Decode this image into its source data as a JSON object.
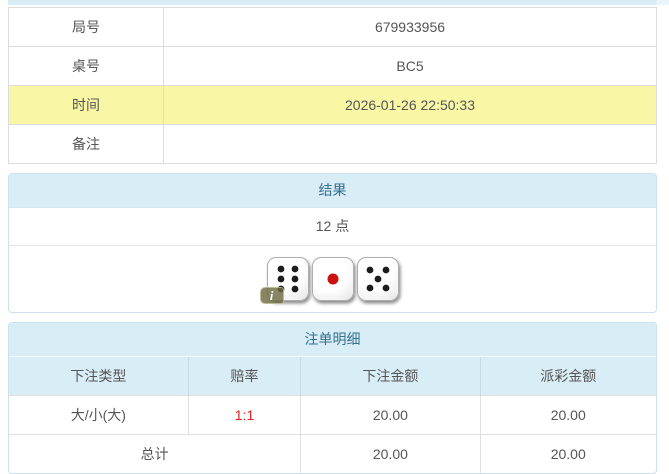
{
  "colors": {
    "accent_bg": "#d9edf7",
    "accent_text": "#31708f",
    "highlight_bg": "#f9f7a6",
    "odds_red": "#dd2222",
    "pip_black": "#1c1c1c",
    "pip_red": "#cc1111"
  },
  "info_table": {
    "rows": [
      {
        "label": "局号",
        "value": "679933956",
        "highlight": false
      },
      {
        "label": "桌号",
        "value": "BC5",
        "highlight": false
      },
      {
        "label": "时间",
        "value": "2026-01-26 22:50:33",
        "highlight": true
      },
      {
        "label": "备注",
        "value": "",
        "highlight": false
      }
    ]
  },
  "result_panel": {
    "title": "结果",
    "points_text": "12 点",
    "dice": [
      {
        "value": 6,
        "pip_color": "#1c1c1c"
      },
      {
        "value": 1,
        "pip_color": "#cc1111"
      },
      {
        "value": 5,
        "pip_color": "#1c1c1c"
      }
    ],
    "info_badge_label": "i"
  },
  "bets_panel": {
    "title": "注单明细",
    "columns": [
      "下注类型",
      "赔率",
      "下注金额",
      "派彩金额"
    ],
    "rows": [
      {
        "bet_type": "大/小(大)",
        "odds": "1:1",
        "bet_amount": "20.00",
        "payout_amount": "20.00"
      }
    ],
    "total_row": {
      "label": "总计",
      "bet_amount": "20.00",
      "payout_amount": "20.00"
    }
  }
}
